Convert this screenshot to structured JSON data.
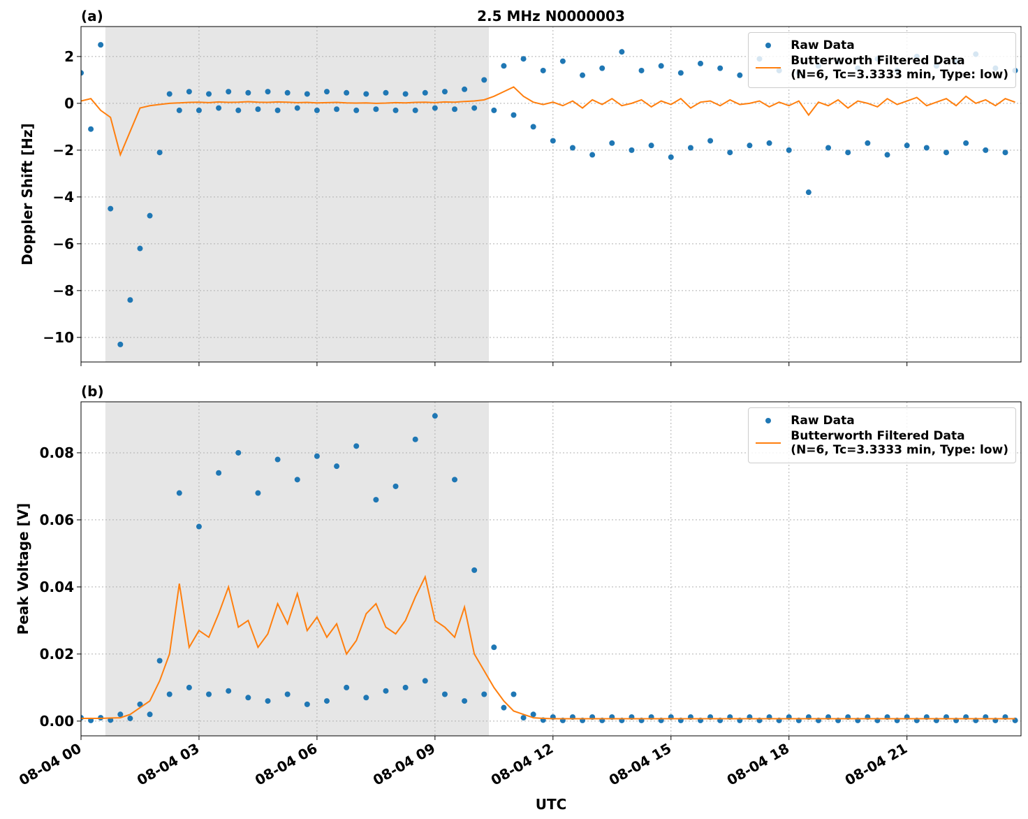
{
  "chart_data": [
    {
      "type": "line",
      "panel_label": "(a)",
      "title": "2.5 MHz N0000003",
      "ylabel": "Doppler Shift [Hz]",
      "x": [
        0,
        0.25,
        0.5,
        0.75,
        1,
        1.25,
        1.5,
        1.75,
        2,
        2.25,
        2.5,
        2.75,
        3,
        3.25,
        3.5,
        3.75,
        4,
        4.25,
        4.5,
        4.75,
        5,
        5.25,
        5.5,
        5.75,
        6,
        6.25,
        6.5,
        6.75,
        7,
        7.25,
        7.5,
        7.75,
        8,
        8.25,
        8.5,
        8.75,
        9,
        9.25,
        9.5,
        9.75,
        10,
        10.25,
        10.5,
        10.75,
        11,
        11.25,
        11.5,
        11.75,
        12,
        12.25,
        12.5,
        12.75,
        13,
        13.25,
        13.5,
        13.75,
        14,
        14.25,
        14.5,
        14.75,
        15,
        15.25,
        15.5,
        15.75,
        16,
        16.25,
        16.5,
        16.75,
        17,
        17.25,
        17.5,
        17.75,
        18,
        18.25,
        18.5,
        18.75,
        19,
        19.25,
        19.5,
        19.75,
        20,
        20.25,
        20.5,
        20.75,
        21,
        21.25,
        21.5,
        21.75,
        22,
        22.25,
        22.5,
        22.75,
        23,
        23.25,
        23.5,
        23.75
      ],
      "series": [
        {
          "name": "Raw Data",
          "color": "#1f77b4",
          "mode": "markers",
          "values": [
            1.3,
            -1.1,
            2.5,
            -4.5,
            -10.3,
            -8.4,
            -6.2,
            -4.8,
            -2.1,
            0.4,
            -0.3,
            0.5,
            -0.3,
            0.4,
            -0.2,
            0.5,
            -0.3,
            0.45,
            -0.25,
            0.5,
            -0.3,
            0.45,
            -0.2,
            0.4,
            -0.3,
            0.5,
            -0.25,
            0.45,
            -0.3,
            0.4,
            -0.25,
            0.45,
            -0.3,
            0.4,
            -0.3,
            0.45,
            -0.2,
            0.5,
            -0.25,
            0.6,
            -0.2,
            1.0,
            -0.3,
            1.6,
            -0.5,
            1.9,
            -1.0,
            1.4,
            -1.6,
            1.8,
            -1.9,
            1.2,
            -2.2,
            1.5,
            -1.7,
            2.2,
            -2.0,
            1.4,
            -1.8,
            1.6,
            -2.3,
            1.3,
            -1.9,
            1.7,
            -1.6,
            1.5,
            -2.1,
            1.2,
            -1.8,
            1.9,
            -1.7,
            1.4,
            -2.0,
            1.3,
            -3.8,
            1.6,
            -1.9,
            1.8,
            -2.1,
            1.5,
            -1.7,
            1.9,
            -2.2,
            1.4,
            -1.8,
            2.0,
            -1.9,
            1.6,
            -2.1,
            1.8,
            -1.7,
            2.1,
            -2.0,
            1.5,
            -2.1,
            1.4
          ]
        },
        {
          "name": "Butterworth Filtered Data\n(N=6, Tc=3.3333 min, Type: low)",
          "color": "#ff7f0e",
          "mode": "line",
          "values": [
            0.1,
            0.2,
            -0.3,
            -0.6,
            -2.2,
            -1.2,
            -0.2,
            -0.1,
            -0.05,
            0,
            0.02,
            0.04,
            0.05,
            0.03,
            0.06,
            0.04,
            0.05,
            0.07,
            0.05,
            0.04,
            0.06,
            0.05,
            0.03,
            0.04,
            0.02,
            0.03,
            0.04,
            0.02,
            0.01,
            0.02,
            0,
            0.01,
            0.03,
            0.02,
            0.04,
            0.05,
            0.03,
            0.06,
            0.05,
            0.08,
            0.1,
            0.15,
            0.3,
            0.5,
            0.7,
            0.3,
            0.05,
            -0.05,
            0.05,
            -0.1,
            0.1,
            -0.2,
            0.15,
            -0.05,
            0.2,
            -0.1,
            0,
            0.15,
            -0.15,
            0.1,
            -0.05,
            0.2,
            -0.2,
            0.05,
            0.1,
            -0.1,
            0.15,
            -0.05,
            0,
            0.1,
            -0.15,
            0.05,
            -0.1,
            0.1,
            -0.5,
            0.05,
            -0.1,
            0.15,
            -0.2,
            0.1,
            0,
            -0.15,
            0.2,
            -0.05,
            0.1,
            0.25,
            -0.1,
            0.05,
            0.2,
            -0.1,
            0.3,
            0,
            0.15,
            -0.1,
            0.2,
            0.05
          ]
        }
      ],
      "xlim": [
        0,
        23.9
      ],
      "xticks": [
        0,
        3,
        6,
        9,
        12,
        15,
        18,
        21
      ],
      "ylim": [
        -11.05,
        3.28
      ],
      "yticks": [
        {
          "value": -10,
          "label": "−10"
        },
        {
          "value": -8,
          "label": "−8"
        },
        {
          "value": -6,
          "label": "−6"
        },
        {
          "value": -4,
          "label": "−4"
        },
        {
          "value": -2,
          "label": "−2"
        },
        0,
        2
      ],
      "shade": [
        0.62,
        10.37
      ],
      "shade_color": "#e6e6e6",
      "grid": true,
      "legend": "upper right"
    },
    {
      "type": "line",
      "panel_label": "(b)",
      "ylabel": "Peak Voltage [V]",
      "xlabel": "UTC",
      "x": [
        0,
        0.25,
        0.5,
        0.75,
        1,
        1.25,
        1.5,
        1.75,
        2,
        2.25,
        2.5,
        2.75,
        3,
        3.25,
        3.5,
        3.75,
        4,
        4.25,
        4.5,
        4.75,
        5,
        5.25,
        5.5,
        5.75,
        6,
        6.25,
        6.5,
        6.75,
        7,
        7.25,
        7.5,
        7.75,
        8,
        8.25,
        8.5,
        8.75,
        9,
        9.25,
        9.5,
        9.75,
        10,
        10.25,
        10.5,
        10.75,
        11,
        11.25,
        11.5,
        11.75,
        12,
        12.25,
        12.5,
        12.75,
        13,
        13.25,
        13.5,
        13.75,
        14,
        14.25,
        14.5,
        14.75,
        15,
        15.25,
        15.5,
        15.75,
        16,
        16.25,
        16.5,
        16.75,
        17,
        17.25,
        17.5,
        17.75,
        18,
        18.25,
        18.5,
        18.75,
        19,
        19.25,
        19.5,
        19.75,
        20,
        20.25,
        20.5,
        20.75,
        21,
        21.25,
        21.5,
        21.75,
        22,
        22.25,
        22.5,
        22.75,
        23,
        23.25,
        23.5,
        23.75
      ],
      "series": [
        {
          "name": "Raw Data",
          "color": "#1f77b4",
          "mode": "markers",
          "values": [
            0.001,
            0.0002,
            0.001,
            0.0003,
            0.002,
            0.0008,
            0.005,
            0.002,
            0.018,
            0.008,
            0.068,
            0.01,
            0.058,
            0.008,
            0.074,
            0.009,
            0.08,
            0.007,
            0.068,
            0.006,
            0.078,
            0.008,
            0.072,
            0.005,
            0.079,
            0.006,
            0.076,
            0.01,
            0.082,
            0.007,
            0.066,
            0.009,
            0.07,
            0.01,
            0.084,
            0.012,
            0.091,
            0.008,
            0.072,
            0.006,
            0.045,
            0.008,
            0.022,
            0.004,
            0.008,
            0.001,
            0.002,
            0.0003,
            0.0012,
            0.0002,
            0.0012,
            0.0002,
            0.0012,
            0.0002,
            0.0012,
            0.0002,
            0.0012,
            0.0002,
            0.0012,
            0.0002,
            0.0012,
            0.0002,
            0.0012,
            0.0002,
            0.0012,
            0.0002,
            0.0012,
            0.0002,
            0.0012,
            0.0002,
            0.0012,
            0.0002,
            0.0012,
            0.0002,
            0.0012,
            0.0002,
            0.0012,
            0.0002,
            0.0012,
            0.0002,
            0.0012,
            0.0002,
            0.0012,
            0.0002,
            0.0012,
            0.0002,
            0.0012,
            0.0002,
            0.0012,
            0.0002,
            0.0012,
            0.0002,
            0.0012,
            0.0002,
            0.0012,
            0.0002
          ]
        },
        {
          "name": "Butterworth Filtered Data\n(N=6, Tc=3.3333 min, Type: low)",
          "color": "#ff7f0e",
          "mode": "line",
          "values": [
            0.0008,
            0.0008,
            0.0008,
            0.0009,
            0.001,
            0.002,
            0.004,
            0.006,
            0.012,
            0.02,
            0.041,
            0.022,
            0.027,
            0.025,
            0.032,
            0.04,
            0.028,
            0.03,
            0.022,
            0.026,
            0.035,
            0.029,
            0.038,
            0.027,
            0.031,
            0.025,
            0.029,
            0.02,
            0.024,
            0.032,
            0.035,
            0.028,
            0.026,
            0.03,
            0.037,
            0.043,
            0.03,
            0.028,
            0.025,
            0.034,
            0.02,
            0.015,
            0.01,
            0.006,
            0.003,
            0.002,
            0.001,
            0.0008,
            0.0007,
            0.0007,
            0.0007,
            0.0007,
            0.0007,
            0.0007,
            0.0007,
            0.0007,
            0.0007,
            0.0007,
            0.0007,
            0.0007,
            0.0007,
            0.0007,
            0.0007,
            0.0007,
            0.0007,
            0.0007,
            0.0007,
            0.0007,
            0.0007,
            0.0007,
            0.0007,
            0.0007,
            0.0007,
            0.0007,
            0.0007,
            0.0007,
            0.0007,
            0.0007,
            0.0007,
            0.0007,
            0.0007,
            0.0007,
            0.0007,
            0.0007,
            0.0007,
            0.0007,
            0.0007,
            0.0007,
            0.0007,
            0.0007,
            0.0007,
            0.0007,
            0.0007,
            0.0007,
            0.0007,
            0.0007
          ]
        }
      ],
      "xlim": [
        0,
        23.9
      ],
      "xticks": [
        {
          "value": 0,
          "label": "08-04 00"
        },
        {
          "value": 3,
          "label": "08-04 03"
        },
        {
          "value": 6,
          "label": "08-04 06"
        },
        {
          "value": 9,
          "label": "08-04 09"
        },
        {
          "value": 12,
          "label": "08-04 12"
        },
        {
          "value": 15,
          "label": "08-04 15"
        },
        {
          "value": 18,
          "label": "08-04 18"
        },
        {
          "value": 21,
          "label": "08-04 21"
        }
      ],
      "ylim": [
        -0.0044,
        0.0952
      ],
      "yticks": [
        {
          "value": 0,
          "label": "0.00"
        },
        0.02,
        0.04,
        0.06,
        0.08
      ],
      "shade": [
        0.62,
        10.37
      ],
      "shade_color": "#e6e6e6",
      "grid": true,
      "legend": "upper right"
    }
  ]
}
